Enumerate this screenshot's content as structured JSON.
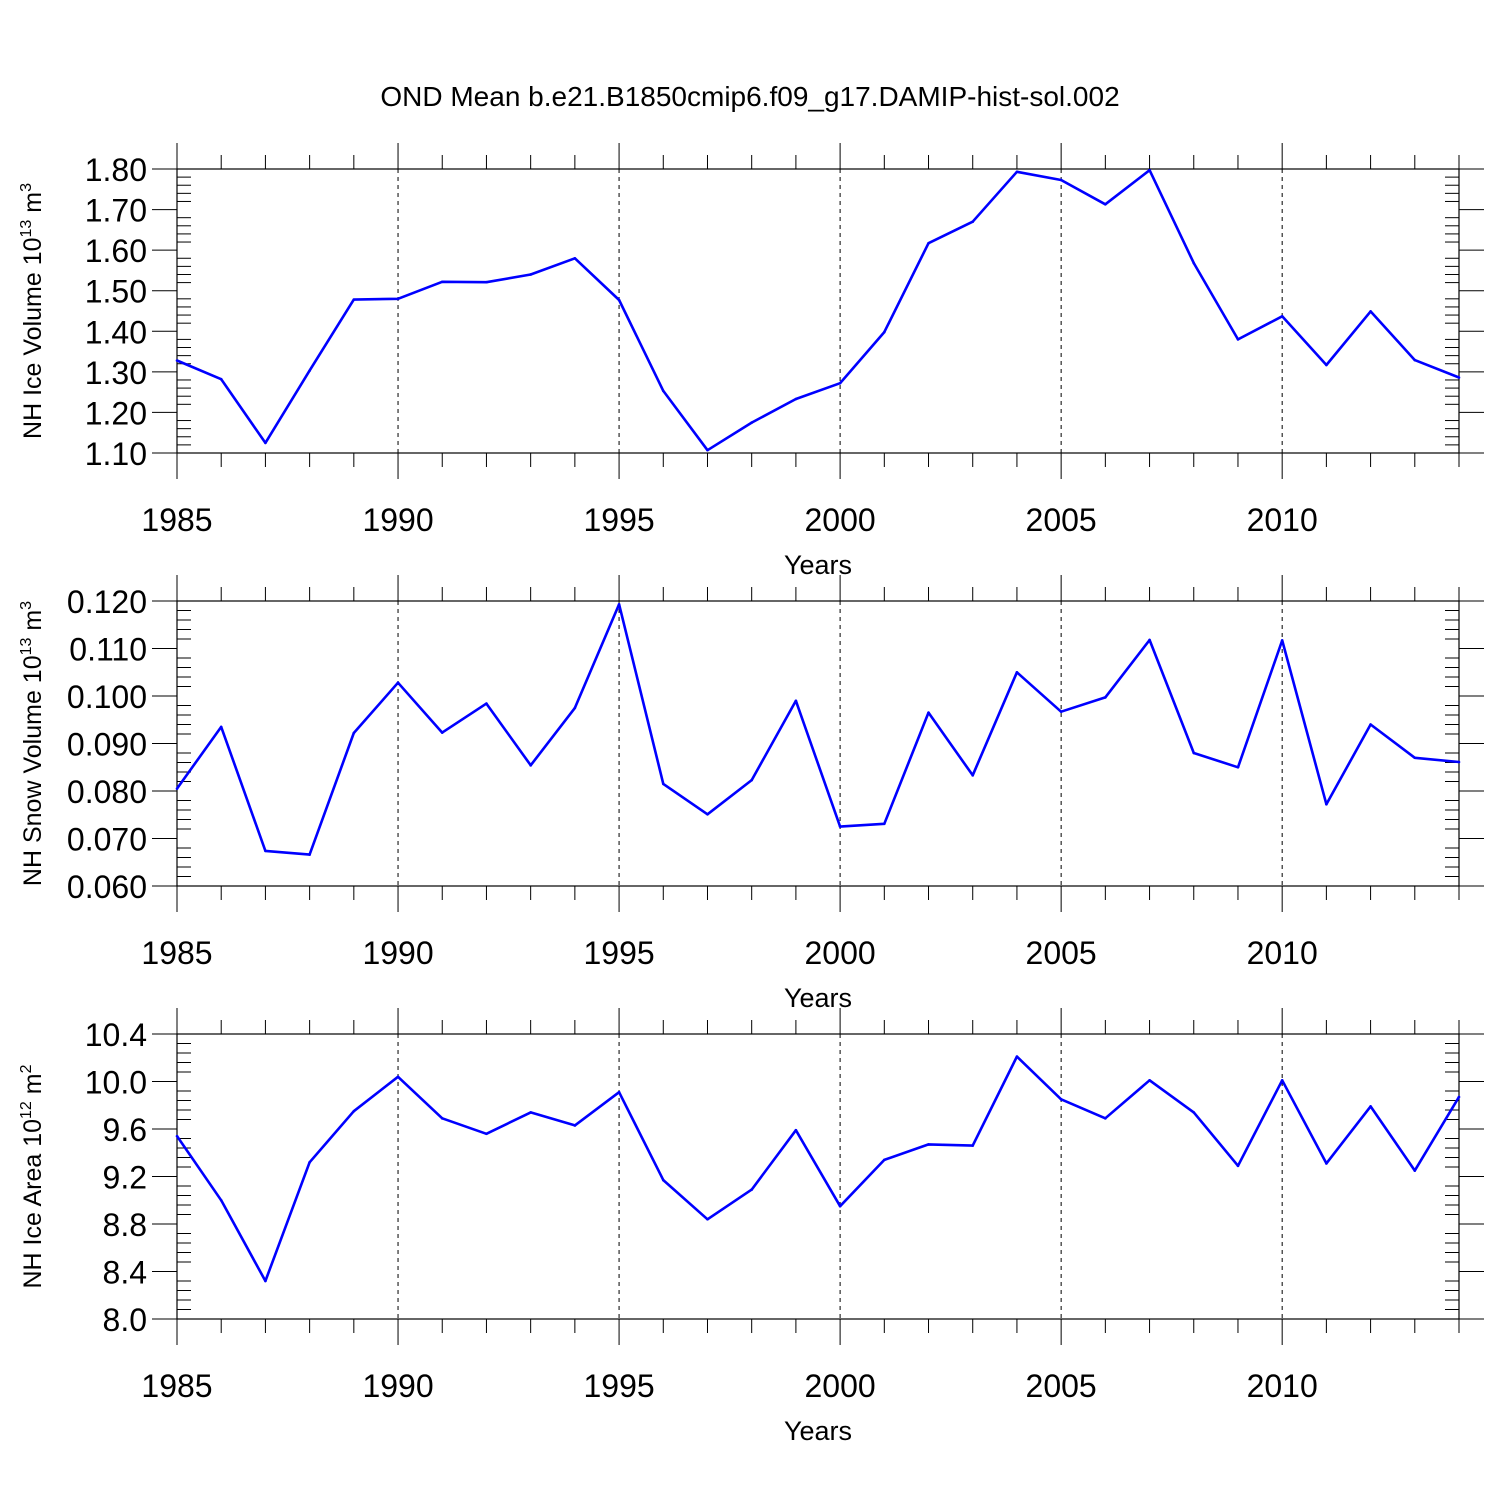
{
  "figure": {
    "title": "OND Mean b.e21.B1850cmip6.f09_g17.DAMIP-hist-sol.002"
  },
  "chart_data": [
    {
      "type": "line",
      "title": "OND Mean b.e21.B1850cmip6.f09_g17.DAMIP-hist-sol.002",
      "xlabel": "Years",
      "ylabel": {
        "text": "NH Ice Volume 10",
        "sup": "13",
        "unit": " m",
        "unit_sup": "3"
      },
      "x": [
        1985,
        1986,
        1987,
        1988,
        1989,
        1990,
        1991,
        1992,
        1993,
        1994,
        1995,
        1996,
        1997,
        1998,
        1999,
        2000,
        2001,
        2002,
        2003,
        2004,
        2005,
        2006,
        2007,
        2008,
        2009,
        2010,
        2011,
        2012,
        2013,
        2014
      ],
      "series": [
        {
          "name": "NH Ice Volume",
          "color": "#0000ff",
          "values": [
            1.328,
            1.282,
            1.125,
            1.303,
            1.478,
            1.48,
            1.522,
            1.521,
            1.54,
            1.58,
            1.477,
            1.253,
            1.107,
            1.175,
            1.233,
            1.272,
            1.398,
            1.617,
            1.67,
            1.793,
            1.773,
            1.713,
            1.797,
            1.568,
            1.38,
            1.437,
            1.317,
            1.449,
            1.329,
            1.286
          ]
        }
      ],
      "xlim": [
        1985,
        2014
      ],
      "ylim": [
        1.1,
        1.8
      ],
      "xticks": [
        1985,
        1990,
        1995,
        2000,
        2005,
        2010
      ],
      "xtick_labels": [
        "1985",
        "1990",
        "1995",
        "2000",
        "2005",
        "2010"
      ],
      "yticks": [
        1.1,
        1.2,
        1.3,
        1.4,
        1.5,
        1.6,
        1.7,
        1.8
      ],
      "ytick_labels": [
        "1.10",
        "1.20",
        "1.30",
        "1.40",
        "1.50",
        "1.60",
        "1.70",
        "1.80"
      ],
      "grid": "vertical dashed at major x ticks"
    },
    {
      "type": "line",
      "xlabel": "Years",
      "ylabel": {
        "text": "NH Snow Volume 10",
        "sup": "13",
        "unit": " m",
        "unit_sup": "3"
      },
      "x": [
        1985,
        1986,
        1987,
        1988,
        1989,
        1990,
        1991,
        1992,
        1993,
        1994,
        1995,
        1996,
        1997,
        1998,
        1999,
        2000,
        2001,
        2002,
        2003,
        2004,
        2005,
        2006,
        2007,
        2008,
        2009,
        2010,
        2011,
        2012,
        2013,
        2014
      ],
      "series": [
        {
          "name": "NH Snow Volume",
          "color": "#0000ff",
          "values": [
            0.0805,
            0.0935,
            0.0674,
            0.0666,
            0.0922,
            0.1028,
            0.0923,
            0.0984,
            0.0854,
            0.0975,
            0.1193,
            0.0815,
            0.0751,
            0.0823,
            0.099,
            0.0725,
            0.0731,
            0.0965,
            0.0833,
            0.105,
            0.0967,
            0.0997,
            0.1118,
            0.088,
            0.085,
            0.1117,
            0.0772,
            0.094,
            0.087,
            0.0861
          ]
        }
      ],
      "xlim": [
        1985,
        2014
      ],
      "ylim": [
        0.06,
        0.12
      ],
      "xticks": [
        1985,
        1990,
        1995,
        2000,
        2005,
        2010
      ],
      "xtick_labels": [
        "1985",
        "1990",
        "1995",
        "2000",
        "2005",
        "2010"
      ],
      "yticks": [
        0.06,
        0.07,
        0.08,
        0.09,
        0.1,
        0.11,
        0.12
      ],
      "ytick_labels": [
        "0.060",
        "0.070",
        "0.080",
        "0.090",
        "0.100",
        "0.110",
        "0.120"
      ],
      "grid": "vertical dashed at major x ticks"
    },
    {
      "type": "line",
      "xlabel": "Years",
      "ylabel": {
        "text": "NH Ice Area 10",
        "sup": "12",
        "unit": " m",
        "unit_sup": "2"
      },
      "x": [
        1985,
        1986,
        1987,
        1988,
        1989,
        1990,
        1991,
        1992,
        1993,
        1994,
        1995,
        1996,
        1997,
        1998,
        1999,
        2000,
        2001,
        2002,
        2003,
        2004,
        2005,
        2006,
        2007,
        2008,
        2009,
        2010,
        2011,
        2012,
        2013,
        2014
      ],
      "series": [
        {
          "name": "NH Ice Area",
          "color": "#0000ff",
          "values": [
            9.54,
            9.0,
            8.32,
            9.32,
            9.75,
            10.04,
            9.69,
            9.56,
            9.74,
            9.63,
            9.91,
            9.17,
            8.84,
            9.09,
            9.59,
            8.95,
            9.34,
            9.47,
            9.46,
            10.21,
            9.85,
            9.69,
            10.01,
            9.74,
            9.29,
            10.01,
            9.31,
            9.79,
            9.25,
            9.87
          ]
        }
      ],
      "xlim": [
        1985,
        2014
      ],
      "ylim": [
        8.0,
        10.4
      ],
      "xticks": [
        1985,
        1990,
        1995,
        2000,
        2005,
        2010
      ],
      "xtick_labels": [
        "1985",
        "1990",
        "1995",
        "2000",
        "2005",
        "2010"
      ],
      "yticks": [
        8.0,
        8.4,
        8.8,
        9.2,
        9.6,
        10.0,
        10.4
      ],
      "ytick_labels": [
        "8.0",
        "8.4",
        "8.8",
        "9.2",
        "9.6",
        "10.0",
        "10.4"
      ],
      "grid": "vertical dashed at major x ticks"
    }
  ]
}
